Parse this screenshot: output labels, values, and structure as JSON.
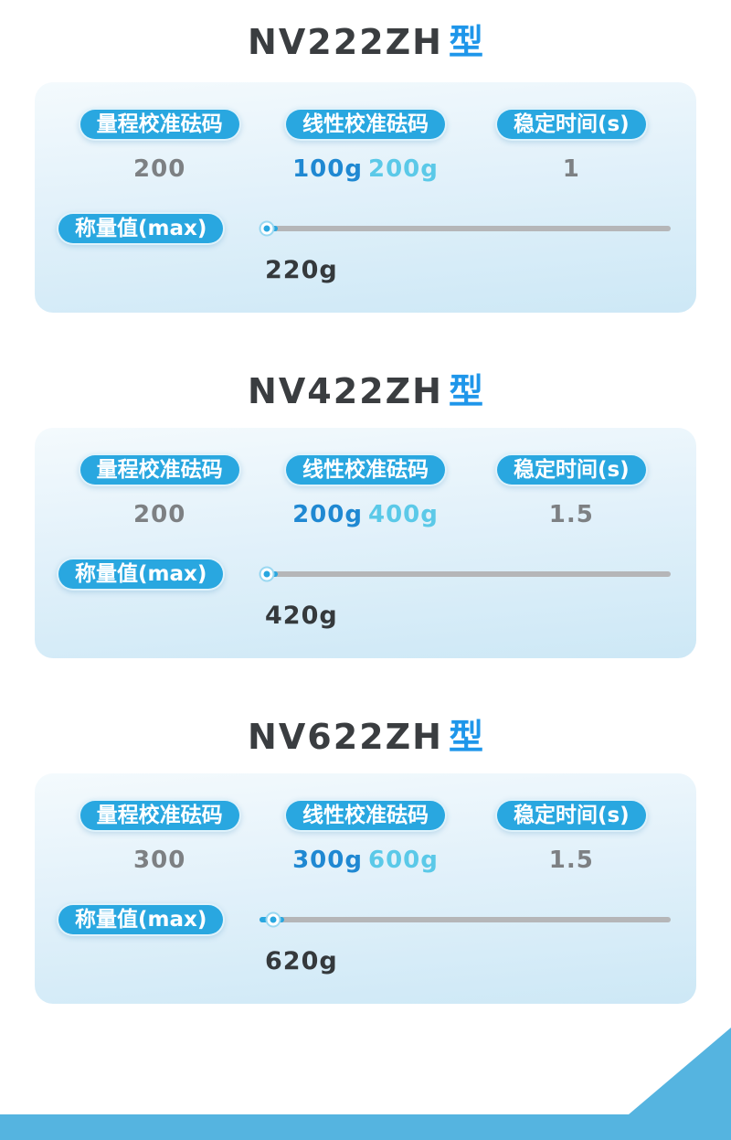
{
  "theme": {
    "pill_blue": "#29a7e0",
    "type_blue": "#1e96ea",
    "value_blue": "#1f88d2",
    "value_cyan": "#5bc9e8",
    "value_gray": "#7d8083",
    "track_gray": "#b5b6b8",
    "footer_blue": "#55b4e0",
    "card_gradient_top": "#f4fafd",
    "card_gradient_bottom": "#cde8f6"
  },
  "labels": {
    "range_calibration": "量程校准砝码",
    "linear_calibration": "线性校准砝码",
    "stabilization_time": "稳定时间(s)",
    "weighing_max": "称量值(max)"
  },
  "models": [
    {
      "name": "NV222ZH",
      "type_suffix": "型",
      "range_calibration_value": "200",
      "linear_calibration_values": [
        "100g",
        "200g"
      ],
      "stabilization_time_value": "1",
      "max_weight": "220g",
      "slider_percent": 1.8
    },
    {
      "name": "NV422ZH",
      "type_suffix": "型",
      "range_calibration_value": "200",
      "linear_calibration_values": [
        "200g",
        "400g"
      ],
      "stabilization_time_value": "1.5",
      "max_weight": "420g",
      "slider_percent": 1.6
    },
    {
      "name": "NV622ZH",
      "type_suffix": "型",
      "range_calibration_value": "300",
      "linear_calibration_values": [
        "300g",
        "600g"
      ],
      "stabilization_time_value": "1.5",
      "max_weight": "620g",
      "slider_percent": 3.2
    }
  ]
}
